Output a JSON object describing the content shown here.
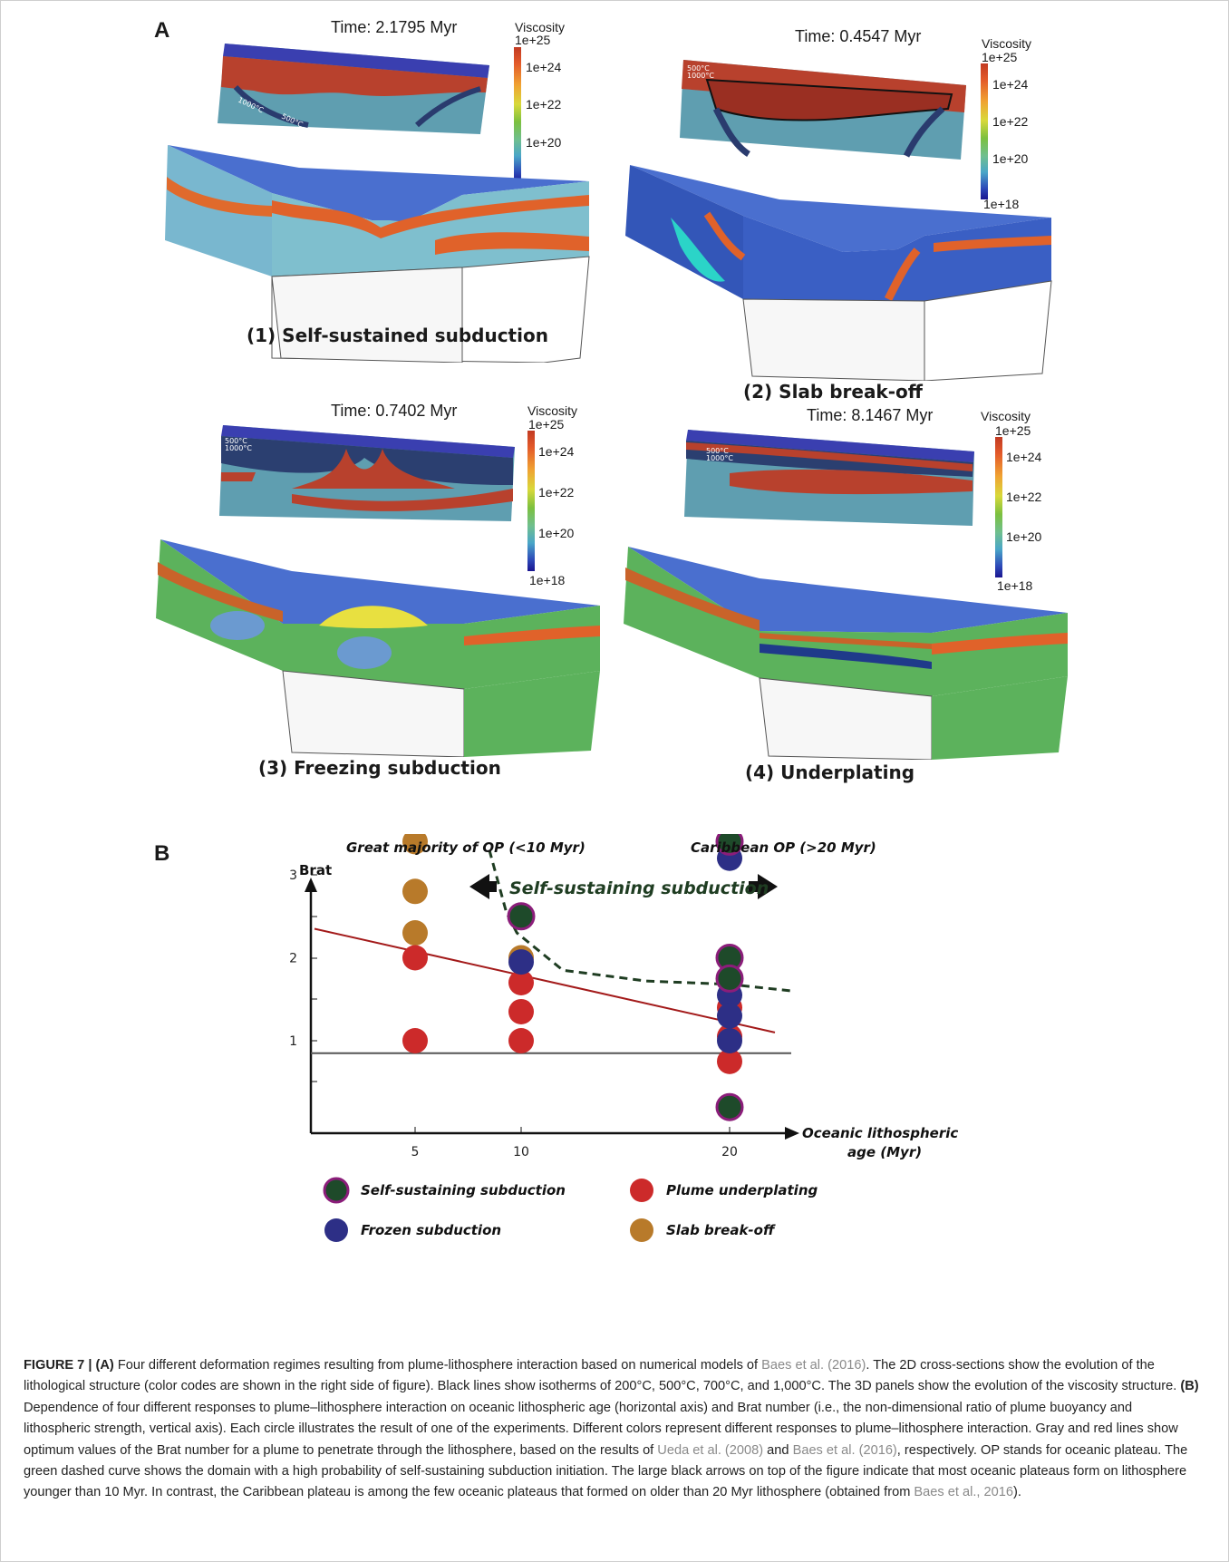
{
  "panel_a": {
    "letter": "A",
    "viscosity_label": "Viscosity",
    "viscosity_ticks": [
      "1e+25",
      "1e+24",
      "1e+22",
      "1e+20",
      "1e+18"
    ],
    "scenes": [
      {
        "time": "Time: 2.1795 Myr",
        "label": "(1) Self-sustained subduction"
      },
      {
        "time": "Time: 0.4547 Myr",
        "label": "(2) Slab break-off"
      },
      {
        "time": "Time: 0.7402 Myr",
        "label": "(3) Freezing subduction"
      },
      {
        "time": "Time: 8.1467 Myr",
        "label": "(4) Underplating"
      }
    ]
  },
  "panel_b": {
    "letter": "B"
  },
  "chart_data": {
    "type": "scatter",
    "ylabel": "Brat",
    "xlabel": "Oceanic lithospheric age (Myr)",
    "x_ticks": [
      5,
      10,
      20
    ],
    "y_ticks": [
      1,
      2,
      3
    ],
    "xlim": [
      0,
      24
    ],
    "ylim": [
      -0.35,
      3.7
    ],
    "annotations": {
      "left_arrow": "Great majority of OP (<10 Myr)",
      "right_arrow": "Caribbean OP (>20 Myr)",
      "domain": "Self-sustaining subduction"
    },
    "colors": {
      "self_sustaining": "#1e4a2a",
      "frozen": "#2d2f86",
      "underplating": "#cc2a2a",
      "breakoff": "#b87a2a",
      "edge": "#8b1d7a",
      "red_line": "#a31a1a",
      "gray_line": "#555555",
      "dashed": "#1f3d22"
    },
    "legend": [
      {
        "key": "self_sustaining",
        "label": "Self-sustaining subduction"
      },
      {
        "key": "underplating",
        "label": "Plume underplating"
      },
      {
        "key": "frozen",
        "label": "Frozen subduction"
      },
      {
        "key": "breakoff",
        "label": "Slab break-off"
      }
    ],
    "series": [
      {
        "key": "breakoff",
        "points": [
          [
            5,
            3.4
          ],
          [
            5,
            2.8
          ],
          [
            5,
            2.3
          ],
          [
            10,
            2.0
          ]
        ]
      },
      {
        "key": "underplating",
        "points": [
          [
            5,
            2.0
          ],
          [
            5,
            1.0
          ],
          [
            10,
            1.7
          ],
          [
            10,
            1.35
          ],
          [
            10,
            1.0
          ],
          [
            20,
            1.4
          ],
          [
            20,
            1.05
          ],
          [
            20,
            0.75
          ]
        ]
      },
      {
        "key": "frozen",
        "points": [
          [
            10,
            1.95
          ],
          [
            20,
            3.2
          ],
          [
            20,
            1.55
          ],
          [
            20,
            1.3
          ],
          [
            20,
            1.0
          ]
        ]
      },
      {
        "key": "self_sustaining",
        "points": [
          [
            10,
            2.5
          ],
          [
            20,
            3.4
          ],
          [
            20,
            2.0
          ],
          [
            20,
            1.75
          ],
          [
            20,
            0.2
          ]
        ]
      }
    ],
    "red_line": [
      [
        0,
        2.35
      ],
      [
        22.5,
        1.1
      ]
    ],
    "gray_line": [
      [
        0,
        0.85
      ],
      [
        23,
        0.85
      ]
    ],
    "dashed_curve": [
      [
        8.5,
        3.3
      ],
      [
        9.3,
        2.55
      ],
      [
        9.8,
        2.3
      ],
      [
        12,
        1.85
      ],
      [
        16,
        1.72
      ],
      [
        20,
        1.68
      ],
      [
        23,
        1.6
      ]
    ]
  },
  "caption": {
    "figure_label": "FIGURE 7 | (A)",
    "part1": " Four different deformation regimes resulting from plume-lithosphere interaction based on numerical models of ",
    "ref1": "Baes et al. (2016)",
    "part2": ". The 2D cross-sections show the evolution of the lithological structure (color codes are shown in the right side of figure). Black lines show isotherms of 200°C, 500°C, 700°C, and 1,000°C. The 3D panels show the evolution of the viscosity structure. ",
    "panel_b_label": "(B)",
    "part3": " Dependence of four different responses to plume–lithosphere interaction on oceanic lithospheric age (horizontal axis) and Brat number (i.e., the non-dimensional ratio of plume buoyancy and lithospheric strength, vertical axis). Each circle illustrates the result of one of the experiments. Different colors represent different responses to plume–lithosphere interaction. Gray and red lines show optimum values of the Brat number for a plume to penetrate through the lithosphere, based on the results of ",
    "ref2": "Ueda et al. (2008)",
    "part4": " and ",
    "ref3": "Baes et al. (2016)",
    "part5": ", respectively. OP stands for oceanic plateau. The green dashed curve shows the domain with a high probability of self-sustaining subduction initiation. The large black arrows on top of the figure indicate that most oceanic plateaus form on lithosphere younger than 10 Myr. In contrast, the Caribbean plateau is among the few oceanic plateaus that formed on older than 20 Myr lithosphere (obtained from ",
    "ref4": "Baes et al., 2016",
    "part6": ")."
  }
}
